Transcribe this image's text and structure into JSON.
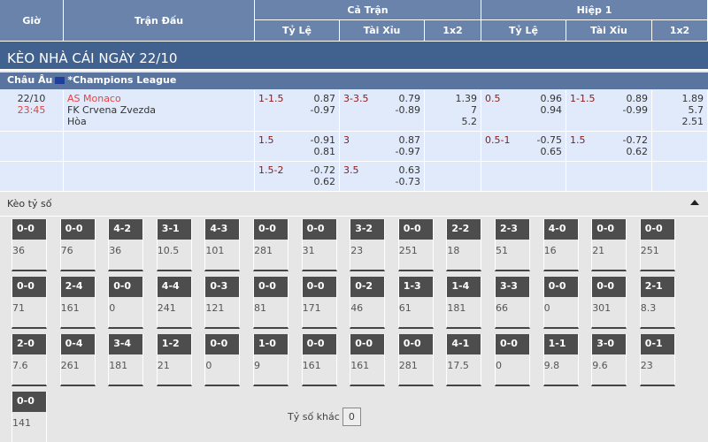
{
  "header": {
    "gio": "Giờ",
    "tran_dau": "Trận Đấu",
    "ca_tran": "Cả Trận",
    "hiep1": "Hiệp 1",
    "sub": [
      "Tỷ Lệ",
      "Tài Xỉu",
      "1x2",
      "Tỷ Lệ",
      "Tài Xỉu",
      "1x2"
    ]
  },
  "title": "KÈO NHÀ CÁI NGÀY 22/10",
  "league": {
    "region": "Châu Âu",
    "name": "*Champions League",
    "flag_icon": "eu-flag-icon"
  },
  "match": {
    "date": "22/10",
    "time": "23:45",
    "home": "AS Monaco",
    "away": "FK Crvena Zvezda",
    "draw": "Hòa"
  },
  "rows": [
    {
      "ft_hdp": "1-1.5",
      "ft_hdp_odds": [
        "0.87",
        "-0.97"
      ],
      "ft_ou": "3-3.5",
      "ft_ou_odds": [
        "0.79",
        "-0.89"
      ],
      "ft_1x2": [
        "1.39",
        "7",
        "5.2"
      ],
      "h1_hdp": "0.5",
      "h1_hdp_odds": [
        "0.96",
        "0.94"
      ],
      "h1_ou": "1-1.5",
      "h1_ou_odds": [
        "0.89",
        "-0.99"
      ],
      "h1_1x2": [
        "1.89",
        "5.7",
        "2.51"
      ]
    },
    {
      "ft_hdp": "1.5",
      "ft_hdp_odds": [
        "-0.91",
        "0.81"
      ],
      "ft_ou": "3",
      "ft_ou_odds": [
        "0.87",
        "-0.97"
      ],
      "ft_1x2": [],
      "h1_hdp": "0.5-1",
      "h1_hdp_odds": [
        "-0.75",
        "0.65"
      ],
      "h1_ou": "1.5",
      "h1_ou_odds": [
        "-0.72",
        "0.62"
      ],
      "h1_1x2": []
    },
    {
      "ft_hdp": "1.5-2",
      "ft_hdp_odds": [
        "-0.72",
        "0.62"
      ],
      "ft_ou": "3.5",
      "ft_ou_odds": [
        "0.63",
        "-0.73"
      ],
      "ft_1x2": [],
      "h1_hdp": "",
      "h1_hdp_odds": [],
      "h1_ou": "",
      "h1_ou_odds": [],
      "h1_1x2": []
    }
  ],
  "score_section": {
    "label": "Kèo tỷ số",
    "other_label": "Tỷ số khác",
    "other_value": "0"
  },
  "scores": [
    [
      "0-0",
      "36"
    ],
    [
      "0-0",
      "76"
    ],
    [
      "4-2",
      "36"
    ],
    [
      "3-1",
      "10.5"
    ],
    [
      "4-3",
      "101"
    ],
    [
      "0-0",
      "281"
    ],
    [
      "0-0",
      "31"
    ],
    [
      "3-2",
      "23"
    ],
    [
      "0-0",
      "251"
    ],
    [
      "2-2",
      "18"
    ],
    [
      "2-3",
      "51"
    ],
    [
      "4-0",
      "16"
    ],
    [
      "0-0",
      "21"
    ],
    [
      "0-0",
      "251"
    ],
    [
      "0-0",
      "71"
    ],
    [
      "2-4",
      "161"
    ],
    [
      "0-0",
      "0"
    ],
    [
      "4-4",
      "241"
    ],
    [
      "0-3",
      "121"
    ],
    [
      "0-0",
      "81"
    ],
    [
      "0-0",
      "171"
    ],
    [
      "0-2",
      "46"
    ],
    [
      "1-3",
      "61"
    ],
    [
      "1-4",
      "181"
    ],
    [
      "3-3",
      "66"
    ],
    [
      "0-0",
      "0"
    ],
    [
      "0-0",
      "301"
    ],
    [
      "2-1",
      "8.3"
    ],
    [
      "2-0",
      "7.6"
    ],
    [
      "0-4",
      "261"
    ],
    [
      "3-4",
      "181"
    ],
    [
      "1-2",
      "21"
    ],
    [
      "0-0",
      "0"
    ],
    [
      "1-0",
      "9"
    ],
    [
      "0-0",
      "161"
    ],
    [
      "0-0",
      "161"
    ],
    [
      "0-0",
      "281"
    ],
    [
      "4-1",
      "17.5"
    ],
    [
      "0-0",
      "0"
    ],
    [
      "1-1",
      "9.8"
    ],
    [
      "3-0",
      "9.6"
    ],
    [
      "0-1",
      "23"
    ],
    [
      "0-0",
      "141"
    ]
  ]
}
